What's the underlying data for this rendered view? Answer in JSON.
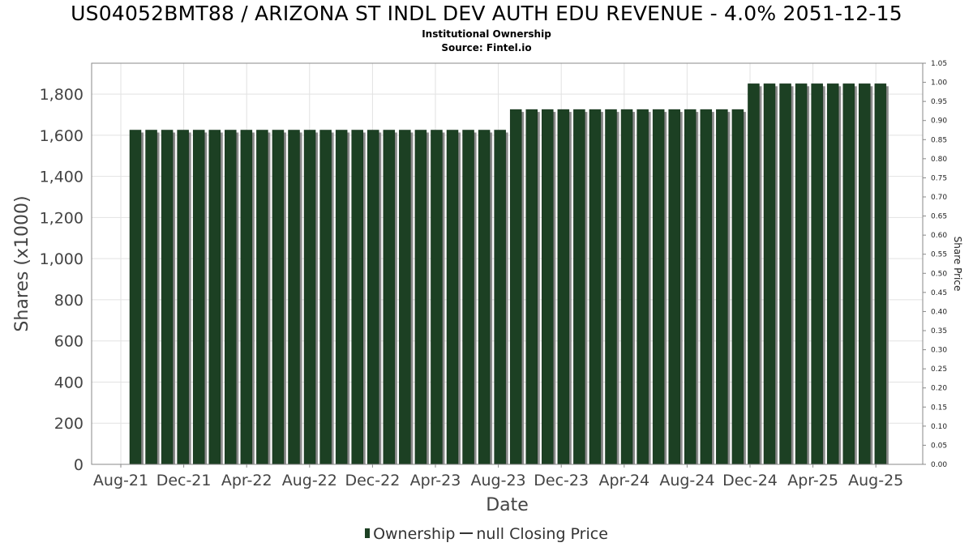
{
  "chart_data": {
    "type": "bar",
    "title": "US04052BMT88 / ARIZONA ST INDL DEV AUTH EDU REVENUE - 4.0% 2051-12-15",
    "subtitle_1": "Institutional Ownership",
    "subtitle_2": "Source: Fintel.io",
    "xlabel": "Date",
    "ylabel": "Shares (x1000)",
    "y2label": "Share Price",
    "ylim": [
      0,
      1950
    ],
    "y2lim": [
      0,
      1.05
    ],
    "y_ticks": [
      "0",
      "200",
      "400",
      "600",
      "800",
      "1,000",
      "1,200",
      "1,400",
      "1,600",
      "1,800"
    ],
    "y2_ticks": [
      "0.00",
      "0.05",
      "0.10",
      "0.15",
      "0.20",
      "0.25",
      "0.30",
      "0.35",
      "0.40",
      "0.45",
      "0.50",
      "0.55",
      "0.60",
      "0.65",
      "0.70",
      "0.75",
      "0.80",
      "0.85",
      "0.90",
      "0.95",
      "1.00",
      "1.05"
    ],
    "x_ticks": [
      "Aug-21",
      "Dec-21",
      "Apr-22",
      "Aug-22",
      "Dec-22",
      "Apr-23",
      "Aug-23",
      "Dec-23",
      "Apr-24",
      "Aug-24",
      "Dec-24",
      "Apr-25",
      "Aug-25"
    ],
    "grid": true,
    "legend_position": "bottom",
    "series": [
      {
        "name": "Ownership",
        "color": "#1c4023",
        "values": [
          1625,
          1625,
          1625,
          1625,
          1625,
          1625,
          1625,
          1625,
          1625,
          1625,
          1625,
          1625,
          1625,
          1625,
          1625,
          1625,
          1625,
          1625,
          1625,
          1625,
          1625,
          1625,
          1625,
          1625,
          1725,
          1725,
          1725,
          1725,
          1725,
          1725,
          1725,
          1725,
          1725,
          1725,
          1725,
          1725,
          1725,
          1725,
          1725,
          1850,
          1850,
          1850,
          1850,
          1850,
          1850,
          1850,
          1850,
          1850
        ]
      }
    ],
    "legend": {
      "ownership": "Ownership",
      "price": "null Closing Price"
    }
  }
}
